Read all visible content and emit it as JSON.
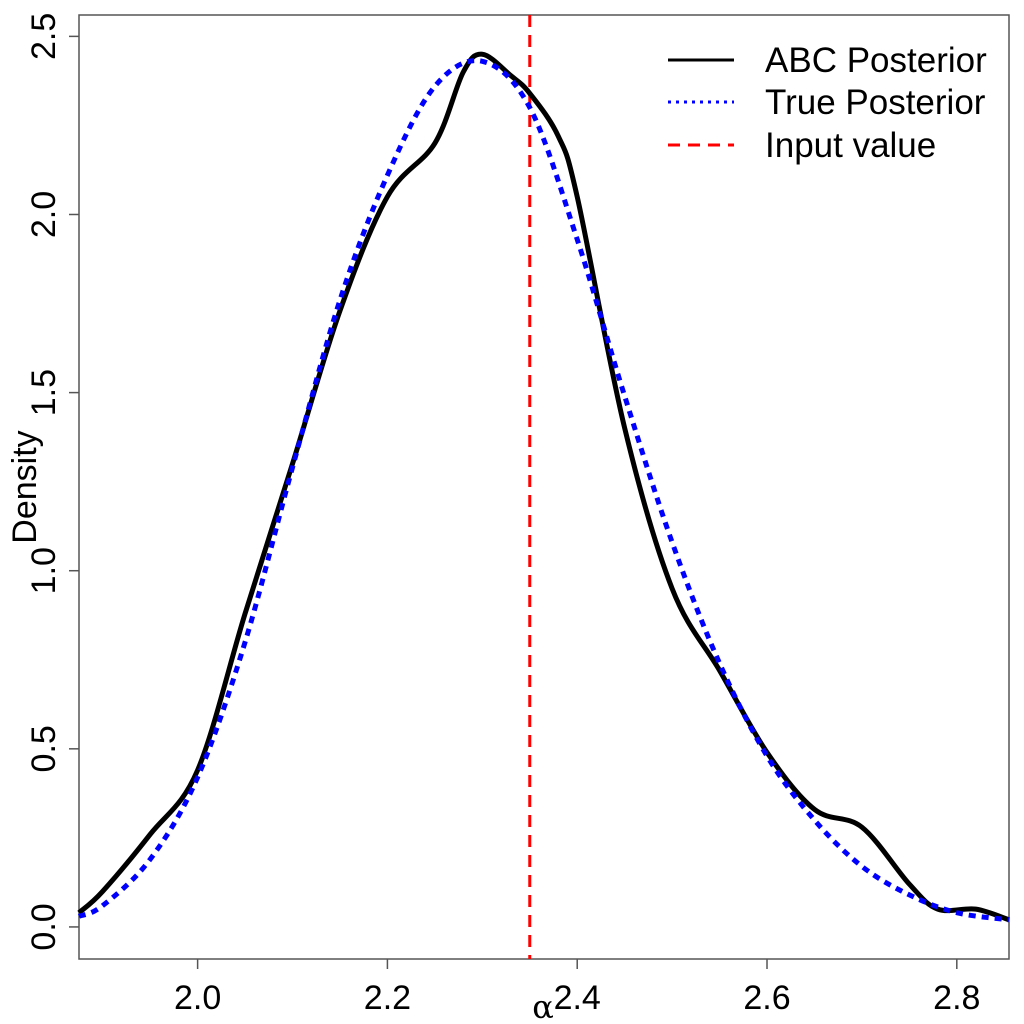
{
  "chart_data": {
    "type": "line",
    "xlabel": "α",
    "ylabel": "Density",
    "xlim": [
      1.875,
      2.855
    ],
    "ylim": [
      -0.09,
      2.56
    ],
    "xticks": [
      "2.0",
      "2.2",
      "2.4",
      "2.6",
      "2.8"
    ],
    "yticks": [
      "0.0",
      "0.5",
      "1.0",
      "1.5",
      "2.0",
      "2.5"
    ],
    "grid": false,
    "legend_position": "top-right",
    "series": [
      {
        "name": "ABC Posterior",
        "style": "solid",
        "color": "#000000",
        "x": [
          1.875,
          1.9,
          1.95,
          2.0,
          2.05,
          2.1,
          2.15,
          2.2,
          2.25,
          2.28,
          2.3,
          2.33,
          2.35,
          2.38,
          2.4,
          2.45,
          2.5,
          2.55,
          2.6,
          2.65,
          2.7,
          2.75,
          2.78,
          2.82,
          2.855
        ],
        "values": [
          0.04,
          0.1,
          0.26,
          0.44,
          0.88,
          1.3,
          1.73,
          2.05,
          2.2,
          2.4,
          2.45,
          2.39,
          2.34,
          2.22,
          2.05,
          1.4,
          0.95,
          0.72,
          0.49,
          0.33,
          0.28,
          0.12,
          0.05,
          0.05,
          0.02
        ]
      },
      {
        "name": "True Posterior",
        "style": "dotted",
        "color": "#0000ff",
        "x": [
          1.875,
          1.9,
          1.95,
          2.0,
          2.05,
          2.1,
          2.15,
          2.2,
          2.25,
          2.3,
          2.35,
          2.4,
          2.45,
          2.5,
          2.55,
          2.6,
          2.65,
          2.7,
          2.75,
          2.8,
          2.855
        ],
        "values": [
          0.03,
          0.06,
          0.19,
          0.42,
          0.8,
          1.29,
          1.76,
          2.11,
          2.36,
          2.43,
          2.3,
          1.93,
          1.49,
          1.08,
          0.74,
          0.48,
          0.3,
          0.17,
          0.09,
          0.04,
          0.02
        ]
      }
    ],
    "vlines": [
      {
        "name": "Input value",
        "x": 2.35,
        "style": "dashed",
        "color": "#ff0000"
      }
    ]
  }
}
